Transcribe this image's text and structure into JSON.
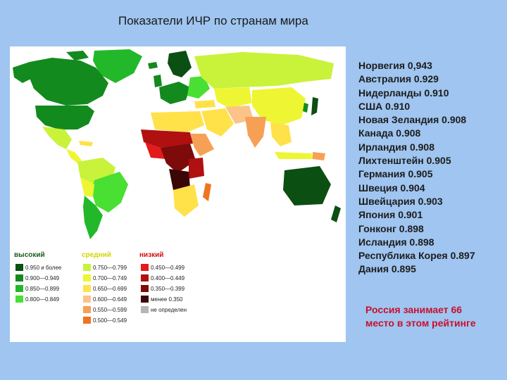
{
  "title": "Показатели ИЧР по странам мира",
  "legend": {
    "groups": [
      {
        "heading": "высокий",
        "heading_color": "#1a5a1a",
        "items": [
          {
            "label": "0.950 и более",
            "color": "#0b4f12"
          },
          {
            "label": "0.900—0.949",
            "color": "#138a1e"
          },
          {
            "label": "0.850—0.899",
            "color": "#22b82a"
          },
          {
            "label": "0.800—0.849",
            "color": "#49df33"
          }
        ]
      },
      {
        "heading": "средний",
        "heading_color": "#d4d400",
        "items": [
          {
            "label": "0.750—0.799",
            "color": "#c9f23a"
          },
          {
            "label": "0.700—0.749",
            "color": "#eef533"
          },
          {
            "label": "0.650—0.699",
            "color": "#ffe14a"
          },
          {
            "label": "0.600—0.649",
            "color": "#fbc38a"
          },
          {
            "label": "0.550—0.599",
            "color": "#f6a055"
          },
          {
            "label": "0.500—0.549",
            "color": "#ef7420"
          }
        ]
      },
      {
        "heading": "низкий",
        "heading_color": "#d01010",
        "items": [
          {
            "label": "0.450—0.499",
            "color": "#e31b1b"
          },
          {
            "label": "0.400—0.449",
            "color": "#b01010"
          },
          {
            "label": "0.350—0.399",
            "color": "#7d0b0b"
          },
          {
            "label": "менее 0.350",
            "color": "#3a0606"
          },
          {
            "label": "не определен",
            "color": "#b5b5b5"
          }
        ]
      }
    ]
  },
  "ranking": [
    "Норвегия 0,943",
    "Австралия 0.929",
    "Нидерланды 0.910",
    "США 0.910",
    "Новая Зеландия 0.908",
    "Канада 0.908",
    "Ирландия 0.908",
    "Лихтенштейн 0.905",
    "Германия 0.905",
    "Швеция 0.904",
    "Швейцария 0.903",
    "Япония 0.901",
    "Гонконг 0.898",
    "Исландия 0.898",
    "Республика Корея 0.897",
    "Дания 0.895"
  ],
  "note": "Россия занимает 66 место в этом рейтинге"
}
